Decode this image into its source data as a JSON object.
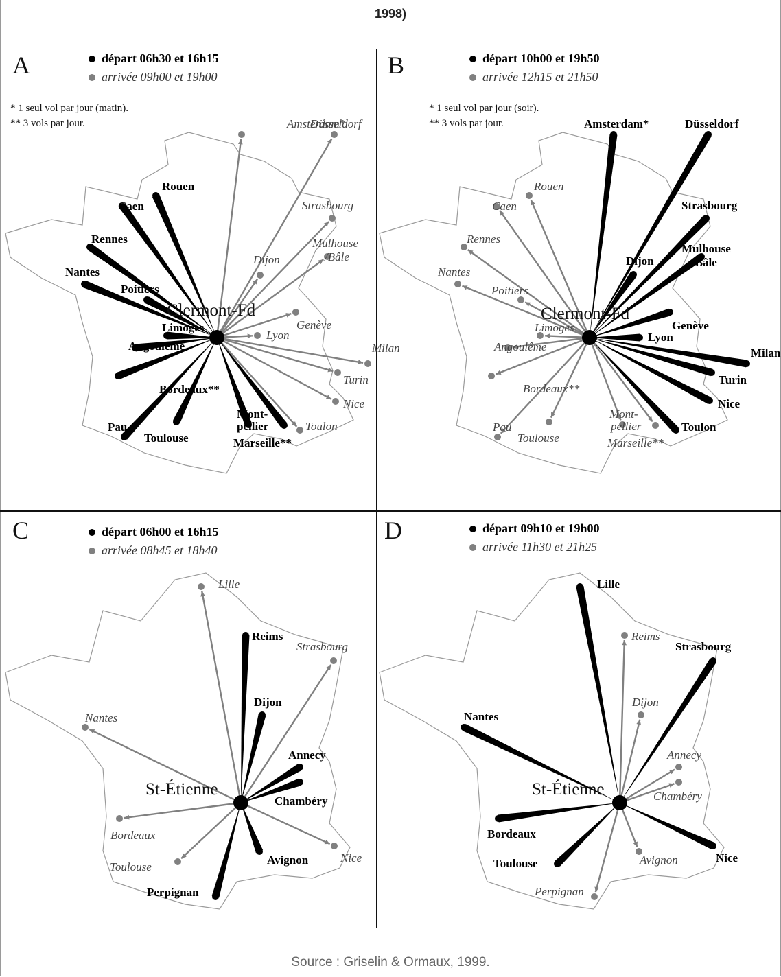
{
  "header": {
    "caption": "1998)"
  },
  "footer": {
    "source": "Source : Griselin & Ormaux, 1999."
  },
  "colors": {
    "departure": "#000000",
    "arrival": "#808080",
    "france_outline": "#9a9a9a"
  },
  "panels": [
    {
      "letter": "A",
      "hub": "Clermont-Fd",
      "legend": {
        "departure": "départ 06h30 et 16h15",
        "arrival": "arrivée  09h00 et 19h00"
      },
      "notes": [
        "*  1 seul vol par jour (matin).",
        "** 3 vols par jour."
      ],
      "cities": [
        {
          "name": "Amsterdam*",
          "type": "arrival"
        },
        {
          "name": "Düsseldorf",
          "type": "arrival"
        },
        {
          "name": "Rouen",
          "type": "departure"
        },
        {
          "name": "Caen",
          "type": "departure"
        },
        {
          "name": "Strasbourg",
          "type": "arrival"
        },
        {
          "name": "Rennes",
          "type": "departure"
        },
        {
          "name": "Mulhouse",
          "type": "arrival"
        },
        {
          "name": "/Bâle",
          "type": "arrival"
        },
        {
          "name": "Dijon",
          "type": "arrival"
        },
        {
          "name": "Nantes",
          "type": "departure"
        },
        {
          "name": "Poitiers",
          "type": "departure"
        },
        {
          "name": "Genève",
          "type": "arrival"
        },
        {
          "name": "Limoges",
          "type": "departure"
        },
        {
          "name": "Lyon",
          "type": "arrival"
        },
        {
          "name": "Angoulême",
          "type": "departure"
        },
        {
          "name": "Milan",
          "type": "arrival"
        },
        {
          "name": "Turin",
          "type": "arrival"
        },
        {
          "name": "Bordeaux**",
          "type": "departure"
        },
        {
          "name": "Nice",
          "type": "arrival"
        },
        {
          "name": "Mont-",
          "type": "departure"
        },
        {
          "name": "pellier",
          "type": "departure"
        },
        {
          "name": "Toulon",
          "type": "arrival"
        },
        {
          "name": "Pau",
          "type": "departure"
        },
        {
          "name": "Toulouse",
          "type": "departure"
        },
        {
          "name": "Marseille**",
          "type": "departure"
        }
      ]
    },
    {
      "letter": "B",
      "hub": "Clermont-Fd",
      "legend": {
        "departure": "départ 10h00 et 19h50",
        "arrival": "arrivée  12h15 et 21h50"
      },
      "notes": [
        "*  1 seul vol par jour (soir).",
        "** 3 vols par jour."
      ],
      "cities": [
        {
          "name": "Amsterdam*",
          "type": "departure"
        },
        {
          "name": "Düsseldorf",
          "type": "departure"
        },
        {
          "name": "Rouen",
          "type": "arrival"
        },
        {
          "name": "Caen",
          "type": "arrival"
        },
        {
          "name": "Strasbourg",
          "type": "departure"
        },
        {
          "name": "Rennes",
          "type": "arrival"
        },
        {
          "name": "Mulhouse",
          "type": "departure"
        },
        {
          "name": "/Bâle",
          "type": "departure"
        },
        {
          "name": "Dijon",
          "type": "departure"
        },
        {
          "name": "Nantes",
          "type": "arrival"
        },
        {
          "name": "Poitiers",
          "type": "arrival"
        },
        {
          "name": "Genève",
          "type": "departure"
        },
        {
          "name": "Limoges",
          "type": "arrival"
        },
        {
          "name": "Lyon",
          "type": "departure"
        },
        {
          "name": "Angoulême",
          "type": "arrival"
        },
        {
          "name": "Milan",
          "type": "departure"
        },
        {
          "name": "Turin",
          "type": "departure"
        },
        {
          "name": "Bordeaux**",
          "type": "arrival"
        },
        {
          "name": "Nice",
          "type": "departure"
        },
        {
          "name": "Mont-",
          "type": "arrival"
        },
        {
          "name": "pellier",
          "type": "arrival"
        },
        {
          "name": "Toulon",
          "type": "departure"
        },
        {
          "name": "Pau",
          "type": "arrival"
        },
        {
          "name": "Toulouse",
          "type": "arrival"
        },
        {
          "name": "Marseille**",
          "type": "arrival"
        }
      ]
    },
    {
      "letter": "C",
      "hub": "St-Étienne",
      "legend": {
        "departure": "départ 06h00 et 16h15",
        "arrival": "arrivée  08h45 et 18h40"
      },
      "notes": [],
      "cities": [
        {
          "name": "Lille",
          "type": "arrival"
        },
        {
          "name": "Reims",
          "type": "departure"
        },
        {
          "name": "Strasbourg",
          "type": "arrival"
        },
        {
          "name": "Dijon",
          "type": "departure"
        },
        {
          "name": "Nantes",
          "type": "arrival"
        },
        {
          "name": "Annecy",
          "type": "departure"
        },
        {
          "name": "Chambéry",
          "type": "departure"
        },
        {
          "name": "Bordeaux",
          "type": "arrival"
        },
        {
          "name": "Nice",
          "type": "arrival"
        },
        {
          "name": "Avignon",
          "type": "departure"
        },
        {
          "name": "Toulouse",
          "type": "arrival"
        },
        {
          "name": "Perpignan",
          "type": "departure"
        }
      ]
    },
    {
      "letter": "D",
      "hub": "St-Étienne",
      "legend": {
        "departure": "départ 09h10 et 19h00",
        "arrival": "arrivée  11h30 et 21h25"
      },
      "notes": [],
      "cities": [
        {
          "name": "Lille",
          "type": "departure"
        },
        {
          "name": "Reims",
          "type": "arrival"
        },
        {
          "name": "Strasbourg",
          "type": "departure"
        },
        {
          "name": "Dijon",
          "type": "arrival"
        },
        {
          "name": "Nantes",
          "type": "departure"
        },
        {
          "name": "Annecy",
          "type": "arrival"
        },
        {
          "name": "Chambéry",
          "type": "arrival"
        },
        {
          "name": "Bordeaux",
          "type": "departure"
        },
        {
          "name": "Nice",
          "type": "departure"
        },
        {
          "name": "Avignon",
          "type": "arrival"
        },
        {
          "name": "Toulouse",
          "type": "departure"
        },
        {
          "name": "Perpignan",
          "type": "arrival"
        }
      ]
    }
  ]
}
